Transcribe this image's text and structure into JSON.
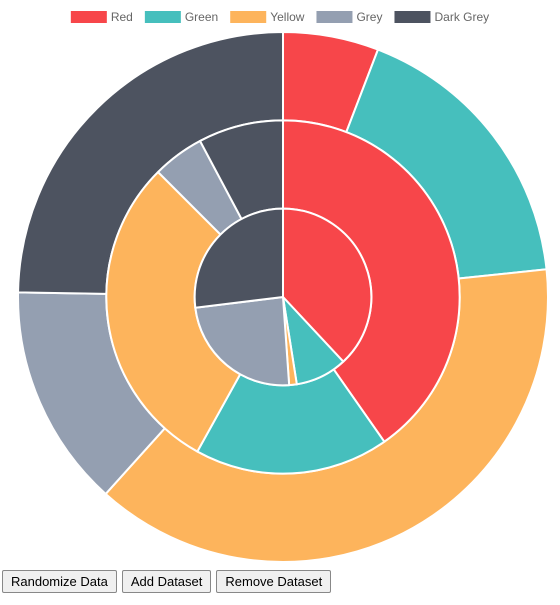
{
  "chart_data": {
    "type": "doughnut",
    "categories": [
      "Red",
      "Green",
      "Yellow",
      "Grey",
      "Dark Grey"
    ],
    "colors": [
      "#F7464A",
      "#46BFBD",
      "#FDB45C",
      "#949FB1",
      "#4D5360"
    ],
    "series": [
      {
        "values": [
          21,
          63,
          138,
          49,
          89
        ]
      },
      {
        "values": [
          145,
          64,
          106,
          17,
          28
        ]
      },
      {
        "values": [
          137,
          34,
          5,
          87,
          97
        ]
      }
    ],
    "legend": "top"
  },
  "buttons": [
    "Randomize Data",
    "Add Dataset",
    "Remove Dataset"
  ]
}
